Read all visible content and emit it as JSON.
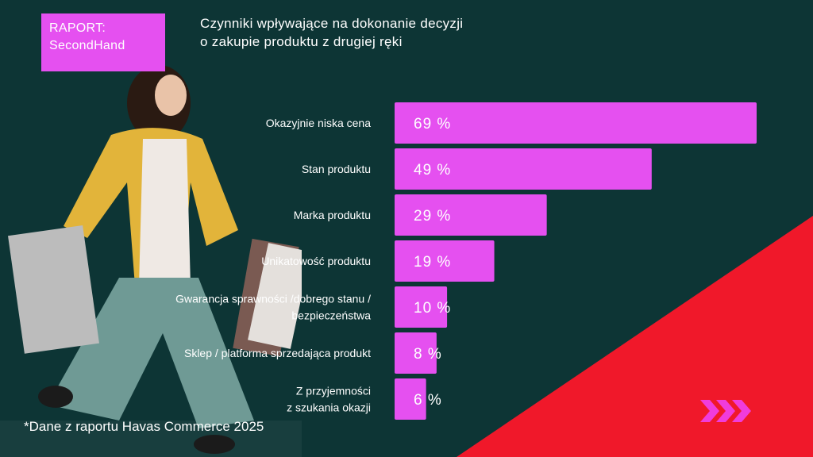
{
  "badge": {
    "line1": "RAPORT:",
    "line2": "SecondHand"
  },
  "title": {
    "line1": "Czynniki wpływające na dokonanie decyzji",
    "line2": "o zakupie produktu z drugiej ręki"
  },
  "footnote": "*Dane z raportu Havas Commerce 2025",
  "colors": {
    "background": "#0d3535",
    "bar": "#e550f0",
    "accent_red": "#f0182a",
    "chevron": "#f03cdc"
  },
  "decor": {
    "chevron_icon": "triple-chevron-right-icon"
  },
  "chart_data": {
    "type": "bar",
    "orientation": "horizontal",
    "categories": [
      [
        "Okazyjnie niska cena"
      ],
      [
        "Stan produktu"
      ],
      [
        "Marka produktu"
      ],
      [
        "Unikatowość produktu"
      ],
      [
        "Gwarancja sprawności /dobrego stanu /",
        "bezpieczeństwa"
      ],
      [
        "Sklep / platforma sprzedająca produkt"
      ],
      [
        "Z przyjemności",
        "z szukania okazji"
      ]
    ],
    "values": [
      69,
      49,
      29,
      19,
      10,
      8,
      6
    ],
    "value_labels": [
      "69 %",
      "49 %",
      "29 %",
      "19 %",
      "10 %",
      "8 %",
      "6 %"
    ],
    "unit": "%",
    "xlim": [
      0,
      69
    ],
    "grid": false
  }
}
